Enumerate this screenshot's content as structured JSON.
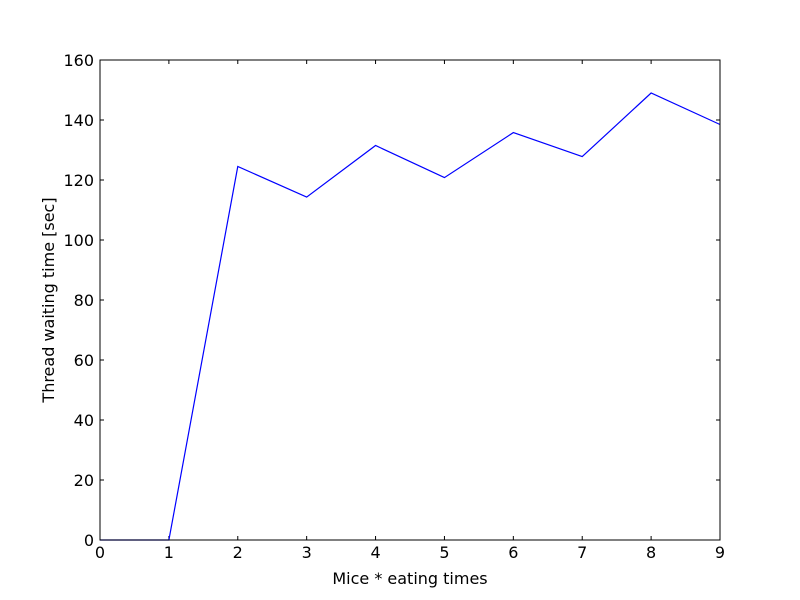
{
  "chart_data": {
    "type": "line",
    "title": "",
    "xlabel": "Mice * eating times",
    "ylabel": "Thread waiting time [sec]",
    "xlim": [
      0,
      9
    ],
    "ylim": [
      0,
      160
    ],
    "xticks": [
      "0",
      "1",
      "2",
      "3",
      "4",
      "5",
      "6",
      "7",
      "8",
      "9"
    ],
    "yticks": [
      "0",
      "20",
      "40",
      "60",
      "80",
      "100",
      "120",
      "140",
      "160"
    ],
    "grid": false,
    "series": [
      {
        "color": "#0000ff",
        "x": [
          0,
          1,
          2,
          3,
          4,
          5,
          6,
          7,
          8,
          9
        ],
        "y": [
          0,
          0,
          124.5,
          114.3,
          131.5,
          120.8,
          135.8,
          127.8,
          149,
          138.5
        ]
      }
    ]
  }
}
